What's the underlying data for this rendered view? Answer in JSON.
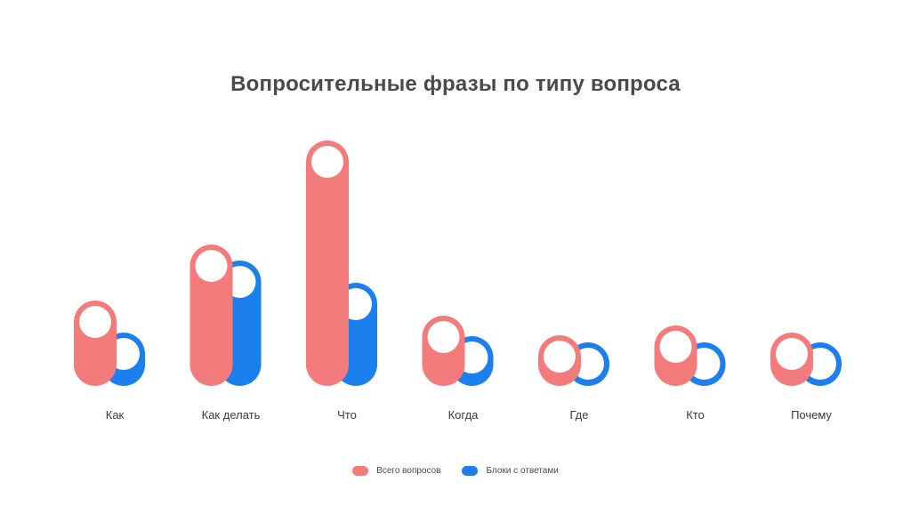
{
  "chart_data": {
    "type": "bar",
    "title": "Вопросительные фразы по типу вопроса",
    "categories": [
      "Как",
      "Как делать",
      "Что",
      "Когда",
      "Где",
      "Кто",
      "Почему"
    ],
    "series": [
      {
        "name": "Всего вопросов",
        "color": "#f47b7b",
        "values": [
          96,
          159,
          276,
          79,
          57,
          68,
          60
        ]
      },
      {
        "name": "Блоки с ответами",
        "color": "#1c7fee",
        "values": [
          60,
          141,
          116,
          56,
          49,
          49,
          49
        ]
      }
    ],
    "legend_position": "bottom-center",
    "grid": false
  }
}
